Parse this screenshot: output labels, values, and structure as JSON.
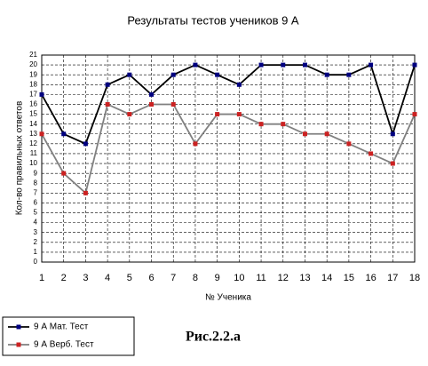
{
  "chart_data": {
    "type": "line",
    "title": "Результаты тестов учеников 9 А",
    "x_label": "№ Ученика",
    "y_label": "Кол-во правильных ответов",
    "x": [
      1,
      2,
      3,
      4,
      5,
      6,
      7,
      8,
      9,
      10,
      11,
      12,
      13,
      14,
      15,
      16,
      17,
      18
    ],
    "xlim": [
      1,
      18
    ],
    "xticks": [
      1,
      2,
      3,
      4,
      5,
      6,
      7,
      8,
      9,
      10,
      11,
      12,
      13,
      14,
      15,
      16,
      17,
      18
    ],
    "ylim": [
      0,
      21
    ],
    "yticks": [
      0,
      1,
      2,
      3,
      4,
      5,
      6,
      7,
      8,
      9,
      10,
      11,
      12,
      13,
      14,
      15,
      16,
      17,
      18,
      19,
      20,
      21
    ],
    "grid": true,
    "legend": "bottom-left",
    "series": [
      {
        "name": "9 А Мат. Тест",
        "color": "#000000",
        "marker_color": "#000080",
        "values": [
          17,
          13,
          12,
          18,
          19,
          17,
          19,
          20,
          19,
          18,
          20,
          20,
          20,
          19,
          19,
          20,
          13,
          20
        ]
      },
      {
        "name": "9 А Верб. Тест",
        "color": "#808080",
        "marker_color": "#cc2222",
        "values": [
          13,
          9,
          7,
          16,
          15,
          16,
          16,
          12,
          15,
          15,
          14,
          14,
          13,
          13,
          12,
          11,
          10,
          15
        ]
      }
    ],
    "caption": "Рис.2.2.а"
  }
}
